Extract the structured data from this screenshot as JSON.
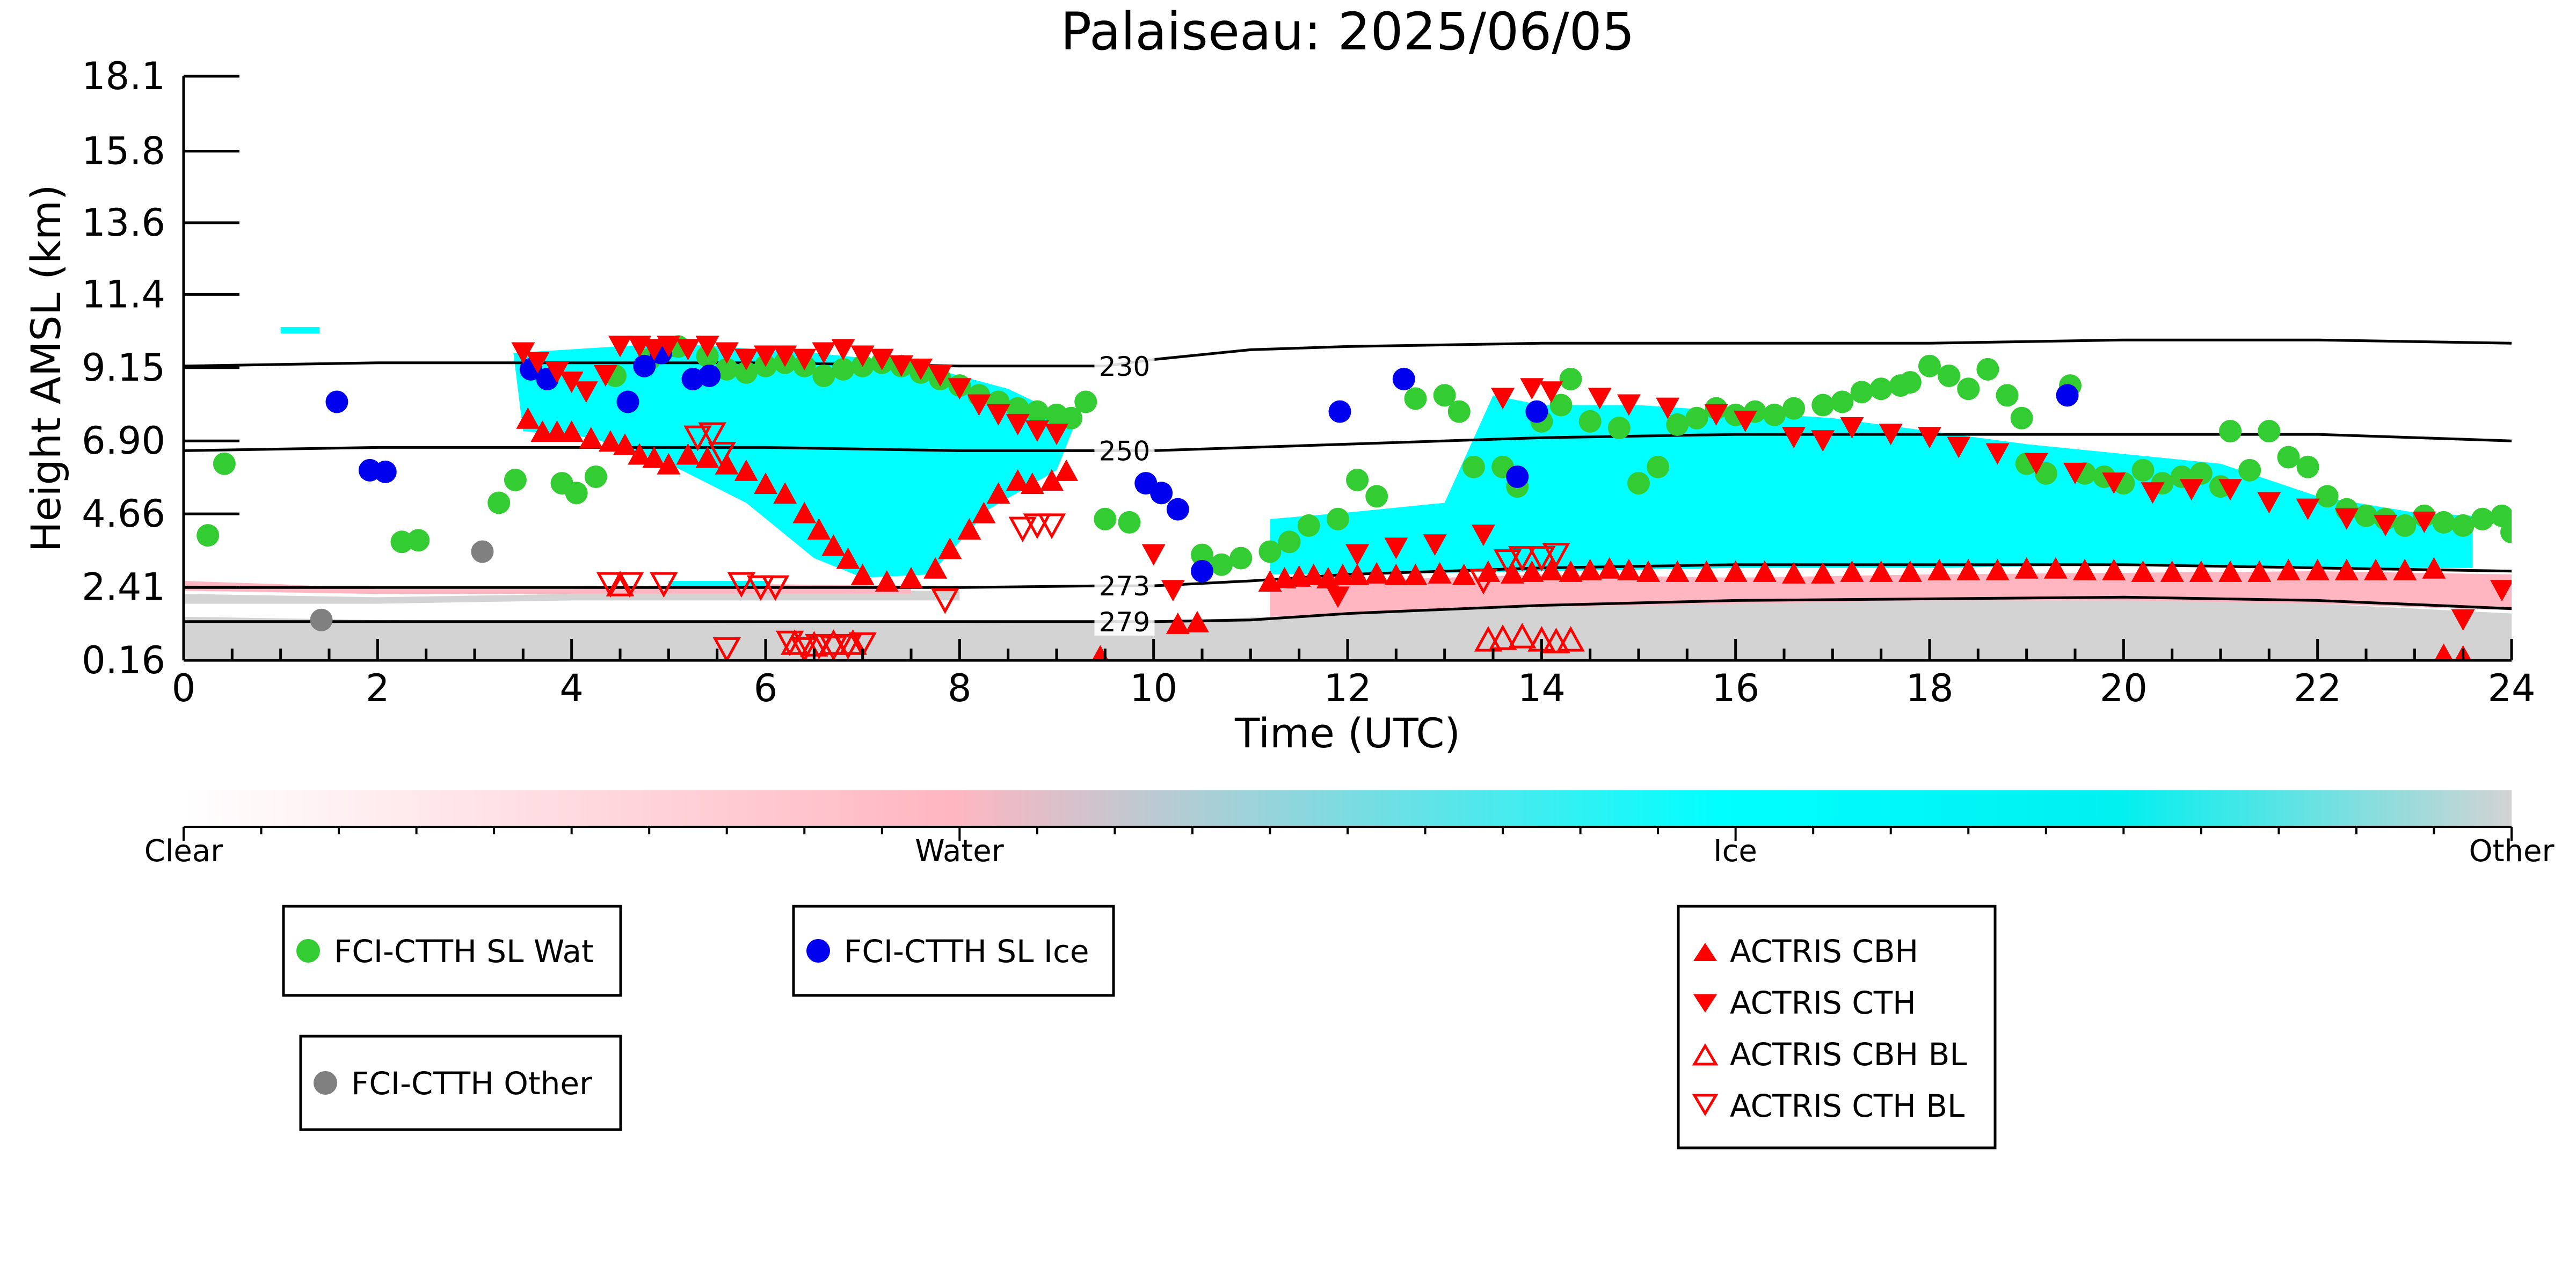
{
  "chart_data": {
    "type": "scatter",
    "title": "Palaiseau: 2025/06/05",
    "xlabel": "Time (UTC)",
    "ylabel": "Height AMSL (km)",
    "xlim": [
      0,
      24
    ],
    "ylim": [
      0.16,
      18.1
    ],
    "x_ticks": [
      0,
      2,
      4,
      6,
      8,
      10,
      12,
      14,
      16,
      18,
      20,
      22,
      24
    ],
    "x_tick_labels": [
      "0",
      "2",
      "4",
      "6",
      "8",
      "10",
      "12",
      "14",
      "16",
      "18",
      "20",
      "22",
      "24"
    ],
    "y_ticks": [
      0.16,
      2.41,
      4.66,
      6.9,
      9.15,
      11.4,
      13.6,
      15.8,
      18.1
    ],
    "y_tick_labels": [
      "0.16",
      "2.41",
      "4.66",
      "6.90",
      "9.15",
      "11.4",
      "13.6",
      "15.8",
      "18.1"
    ],
    "colorbar": {
      "labels": [
        "Clear",
        "Water",
        "Ice",
        "Other"
      ],
      "colors": [
        "#ffffff",
        "#ffb6c1",
        "#00ffff",
        "#d3d3d3"
      ]
    },
    "contours": [
      {
        "label": "230",
        "x": [
          0,
          2,
          4,
          6,
          8,
          9.5,
          10,
          11,
          12,
          14,
          16,
          18,
          20,
          22,
          24
        ],
        "y": [
          9.2,
          9.3,
          9.3,
          9.3,
          9.2,
          9.2,
          9.4,
          9.7,
          9.8,
          9.9,
          9.9,
          9.9,
          10.0,
          10.0,
          9.9
        ]
      },
      {
        "label": "250",
        "x": [
          0,
          2,
          4,
          6,
          8,
          9.5,
          10,
          12,
          14,
          16,
          18,
          20,
          22,
          24
        ],
        "y": [
          6.6,
          6.7,
          6.7,
          6.7,
          6.6,
          6.6,
          6.6,
          6.8,
          7.0,
          7.1,
          7.1,
          7.1,
          7.1,
          6.9
        ]
      },
      {
        "label": "273",
        "x": [
          0,
          2,
          4,
          6,
          8,
          9.5,
          10,
          11,
          12,
          14,
          16,
          18,
          20,
          22,
          24
        ],
        "y": [
          2.4,
          2.4,
          2.4,
          2.4,
          2.4,
          2.45,
          2.45,
          2.6,
          2.8,
          3.0,
          3.1,
          3.1,
          3.1,
          3.0,
          2.9
        ]
      },
      {
        "label": "279",
        "x": [
          0,
          2,
          4,
          6,
          8,
          9.5,
          10,
          11,
          12,
          14,
          16,
          18,
          20,
          22,
          24
        ],
        "y": [
          1.35,
          1.35,
          1.35,
          1.35,
          1.35,
          1.35,
          1.35,
          1.4,
          1.6,
          1.85,
          2.0,
          2.05,
          2.1,
          2.0,
          1.75
        ]
      }
    ],
    "series": [
      {
        "name": "FCI-CTTH SL Wat",
        "color": "#33cc33",
        "marker": "circle",
        "x": [
          0.25,
          0.42,
          2.25,
          2.42,
          3.25,
          3.42,
          3.9,
          4.05,
          4.25,
          4.45,
          4.8,
          4.95,
          5.1,
          5.4,
          5.6,
          5.8,
          6.0,
          6.2,
          6.4,
          6.6,
          6.8,
          7.0,
          7.2,
          7.4,
          7.6,
          7.8,
          8.0,
          8.2,
          8.4,
          8.6,
          8.8,
          9.0,
          9.15,
          9.3,
          9.5,
          9.75,
          10.5,
          10.7,
          10.9,
          11.2,
          11.4,
          11.6,
          11.9,
          12.1,
          12.3,
          12.7,
          13.0,
          13.15,
          13.3,
          13.6,
          13.75,
          14.0,
          14.2,
          14.3,
          14.5,
          14.8,
          15.0,
          15.2,
          15.4,
          15.6,
          15.8,
          16.0,
          16.2,
          16.4,
          16.6,
          16.9,
          17.1,
          17.3,
          17.5,
          17.7,
          17.8,
          18.0,
          18.2,
          18.4,
          18.6,
          18.8,
          18.95,
          19.0,
          19.2,
          19.45,
          19.6,
          19.8,
          20.0,
          20.2,
          20.4,
          20.6,
          20.8,
          21.0,
          21.1,
          21.3,
          21.5,
          21.7,
          21.9,
          22.1,
          22.3,
          22.5,
          22.7,
          22.9,
          23.1,
          23.3,
          23.5,
          23.7,
          23.9,
          24.0
        ],
        "y": [
          4.0,
          6.2,
          3.8,
          3.85,
          5.0,
          5.7,
          5.6,
          5.3,
          5.8,
          8.9,
          9.4,
          9.7,
          9.8,
          9.5,
          9.1,
          9.0,
          9.2,
          9.3,
          9.2,
          8.9,
          9.1,
          9.2,
          9.3,
          9.2,
          9.0,
          8.8,
          8.6,
          8.3,
          8.1,
          7.9,
          7.8,
          7.7,
          7.6,
          8.1,
          4.5,
          4.4,
          3.4,
          3.1,
          3.3,
          3.5,
          3.8,
          4.3,
          4.5,
          5.7,
          5.2,
          8.2,
          8.3,
          7.8,
          6.1,
          6.1,
          5.5,
          7.5,
          8.0,
          8.8,
          7.5,
          7.3,
          5.6,
          6.1,
          7.4,
          7.6,
          7.9,
          7.7,
          7.8,
          7.7,
          7.9,
          8.0,
          8.1,
          8.4,
          8.5,
          8.6,
          8.7,
          9.2,
          8.9,
          8.5,
          9.1,
          8.3,
          7.6,
          6.2,
          5.9,
          8.6,
          5.9,
          5.8,
          5.6,
          6.0,
          5.6,
          5.8,
          5.9,
          5.5,
          7.2,
          6.0,
          7.2,
          6.4,
          6.1,
          5.2,
          4.8,
          4.6,
          4.5,
          4.3,
          4.6,
          4.4,
          4.3,
          4.5,
          4.6,
          4.1
        ]
      },
      {
        "name": "FCI-CTTH SL Ice",
        "color": "#0000ee",
        "marker": "circle",
        "x": [
          1.58,
          1.92,
          2.08,
          3.58,
          3.75,
          4.58,
          4.75,
          4.92,
          5.25,
          5.42,
          9.92,
          10.08,
          10.25,
          10.5,
          11.92,
          12.58,
          13.75,
          13.95,
          19.42
        ],
        "y": [
          8.1,
          6.0,
          5.95,
          9.1,
          8.8,
          8.1,
          9.2,
          9.6,
          8.8,
          8.9,
          5.6,
          5.3,
          4.8,
          2.9,
          7.8,
          8.8,
          5.8,
          7.8,
          8.3
        ]
      },
      {
        "name": "FCI-CTTH Other",
        "color": "#808080",
        "marker": "circle",
        "x": [
          1.42,
          3.08
        ],
        "y": [
          1.4,
          3.5
        ]
      },
      {
        "name": "ACTRIS CBH",
        "color": "#ff0000",
        "marker": "triangle-up",
        "x": [
          3.55,
          3.7,
          3.85,
          4.0,
          4.2,
          4.4,
          4.55,
          4.7,
          4.85,
          5.0,
          5.2,
          5.4,
          5.6,
          5.8,
          6.0,
          6.2,
          6.4,
          6.55,
          6.7,
          6.85,
          7.0,
          7.25,
          7.5,
          7.75,
          7.9,
          8.1,
          8.25,
          8.4,
          8.6,
          8.75,
          8.95,
          9.1,
          9.45,
          10.25,
          10.45,
          11.2,
          11.35,
          11.5,
          11.65,
          11.8,
          11.95,
          12.1,
          12.3,
          12.5,
          12.7,
          12.95,
          13.2,
          13.45,
          13.7,
          13.9,
          14.1,
          14.3,
          14.5,
          14.7,
          14.9,
          15.1,
          15.4,
          15.7,
          16.0,
          16.3,
          16.6,
          16.9,
          17.2,
          17.5,
          17.8,
          18.1,
          18.4,
          18.7,
          19.0,
          19.3,
          19.6,
          19.9,
          20.2,
          20.5,
          20.8,
          21.1,
          21.4,
          21.7,
          22.0,
          22.3,
          22.6,
          22.9,
          23.2,
          23.3,
          23.5
        ],
        "y": [
          7.6,
          7.2,
          7.2,
          7.2,
          7.0,
          6.9,
          6.8,
          6.5,
          6.4,
          6.2,
          6.5,
          6.4,
          6.2,
          6.0,
          5.6,
          5.3,
          4.7,
          4.2,
          3.7,
          3.3,
          2.8,
          2.6,
          2.7,
          3.0,
          3.6,
          4.2,
          4.7,
          5.3,
          5.7,
          5.6,
          5.7,
          6.0,
          0.3,
          1.3,
          1.35,
          2.6,
          2.7,
          2.75,
          2.8,
          2.7,
          2.8,
          2.8,
          2.85,
          2.8,
          2.8,
          2.85,
          2.8,
          2.9,
          2.85,
          2.9,
          2.95,
          2.9,
          2.95,
          3.0,
          2.95,
          2.9,
          2.9,
          2.9,
          2.9,
          2.9,
          2.85,
          2.85,
          2.9,
          2.9,
          2.9,
          2.95,
          2.95,
          2.95,
          3.0,
          3.0,
          2.95,
          2.95,
          2.9,
          2.9,
          2.9,
          2.9,
          2.9,
          2.95,
          2.95,
          2.95,
          2.95,
          2.95,
          3.0,
          0.35,
          0.3
        ]
      },
      {
        "name": "ACTRIS CTH",
        "color": "#ff0000",
        "marker": "triangle-down",
        "x": [
          3.5,
          3.65,
          3.85,
          4.0,
          4.15,
          4.35,
          4.5,
          4.7,
          4.85,
          5.0,
          5.2,
          5.4,
          5.6,
          5.8,
          6.0,
          6.2,
          6.4,
          6.6,
          6.8,
          7.0,
          7.2,
          7.4,
          7.6,
          7.8,
          8.0,
          8.2,
          8.4,
          8.6,
          8.8,
          9.0,
          10.0,
          10.2,
          11.9,
          12.1,
          12.5,
          12.9,
          13.4,
          13.6,
          13.9,
          14.1,
          14.6,
          14.9,
          15.3,
          15.8,
          16.1,
          16.6,
          16.9,
          17.2,
          17.6,
          18.0,
          18.3,
          18.7,
          19.1,
          19.5,
          19.9,
          20.3,
          20.7,
          21.1,
          21.5,
          21.9,
          22.3,
          22.7,
          23.1,
          23.5,
          23.9
        ],
        "y": [
          9.6,
          9.3,
          9.0,
          8.7,
          8.4,
          8.9,
          9.8,
          9.8,
          9.7,
          9.8,
          9.7,
          9.8,
          9.6,
          9.4,
          9.5,
          9.5,
          9.4,
          9.6,
          9.7,
          9.5,
          9.4,
          9.2,
          9.1,
          8.9,
          8.5,
          8.0,
          7.7,
          7.4,
          7.2,
          7.1,
          3.4,
          2.3,
          2.1,
          3.4,
          3.6,
          3.7,
          4.0,
          8.2,
          8.5,
          8.4,
          8.2,
          8.0,
          7.9,
          7.7,
          7.5,
          7.0,
          6.9,
          7.3,
          7.1,
          7.0,
          6.7,
          6.5,
          6.2,
          5.9,
          5.6,
          5.3,
          5.4,
          5.4,
          5.0,
          4.8,
          4.5,
          4.3,
          4.4,
          1.4,
          2.3
        ]
      },
      {
        "name": "ACTRIS CBH BL",
        "color": "#ff0000",
        "marker": "triangle-up-open",
        "x": [
          4.5,
          6.3,
          6.5,
          6.7,
          6.9,
          13.45,
          13.6,
          13.8,
          14.0,
          14.15,
          14.3
        ],
        "y": [
          2.5,
          0.7,
          0.65,
          0.7,
          0.7,
          0.8,
          0.85,
          0.9,
          0.8,
          0.75,
          0.8
        ]
      },
      {
        "name": "ACTRIS CTH BL",
        "color": "#ff0000",
        "marker": "triangle-down-open",
        "x": [
          4.4,
          4.6,
          4.95,
          5.3,
          5.45,
          5.55,
          5.6,
          5.75,
          5.95,
          6.1,
          6.25,
          6.4,
          6.55,
          6.7,
          6.85,
          7.0,
          7.85,
          8.65,
          8.8,
          8.95,
          13.4,
          13.65,
          13.8,
          14.0,
          14.15
        ],
        "y": [
          2.5,
          2.5,
          2.5,
          7.0,
          7.1,
          6.5,
          0.5,
          2.5,
          2.4,
          2.4,
          0.7,
          0.5,
          0.6,
          0.55,
          0.6,
          0.65,
          2.0,
          4.2,
          4.3,
          4.3,
          2.6,
          3.2,
          3.3,
          3.3,
          3.4
        ]
      }
    ]
  },
  "legend": {
    "wat": "FCI-CTTH SL Wat",
    "ice": "FCI-CTTH SL Ice",
    "other": "FCI-CTTH Other",
    "cbh": "ACTRIS CBH",
    "cth": "ACTRIS CTH",
    "cbh_bl": "ACTRIS CBH BL",
    "cth_bl": "ACTRIS CTH BL"
  }
}
